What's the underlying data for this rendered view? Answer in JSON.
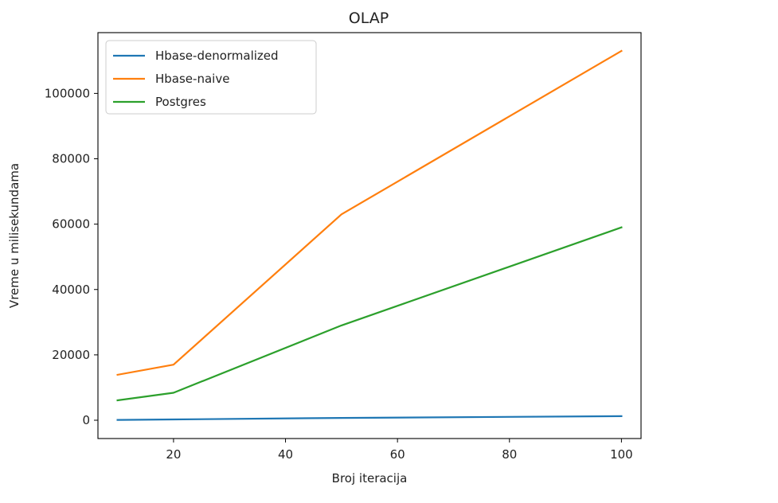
{
  "chart_data": {
    "type": "line",
    "title": "OLAP",
    "xlabel": "Broj iteracija",
    "ylabel": "Vreme u milisekundama",
    "x": [
      10,
      20,
      50,
      100
    ],
    "xlim": [
      6.5,
      103.5
    ],
    "ylim": [
      -5600,
      118600
    ],
    "xticks": [
      20,
      40,
      60,
      80,
      100
    ],
    "yticks": [
      0,
      20000,
      40000,
      60000,
      80000,
      100000
    ],
    "grid": false,
    "legend": "top-left",
    "series": [
      {
        "name": "Hbase-denormalized",
        "color": "#1f77b4",
        "values": [
          100,
          250,
          700,
          1250
        ]
      },
      {
        "name": "Hbase-naive",
        "color": "#ff7f0e",
        "values": [
          13900,
          17000,
          63000,
          113000
        ]
      },
      {
        "name": "Postgres",
        "color": "#2ca02c",
        "values": [
          6100,
          8400,
          29000,
          59000
        ]
      }
    ]
  }
}
